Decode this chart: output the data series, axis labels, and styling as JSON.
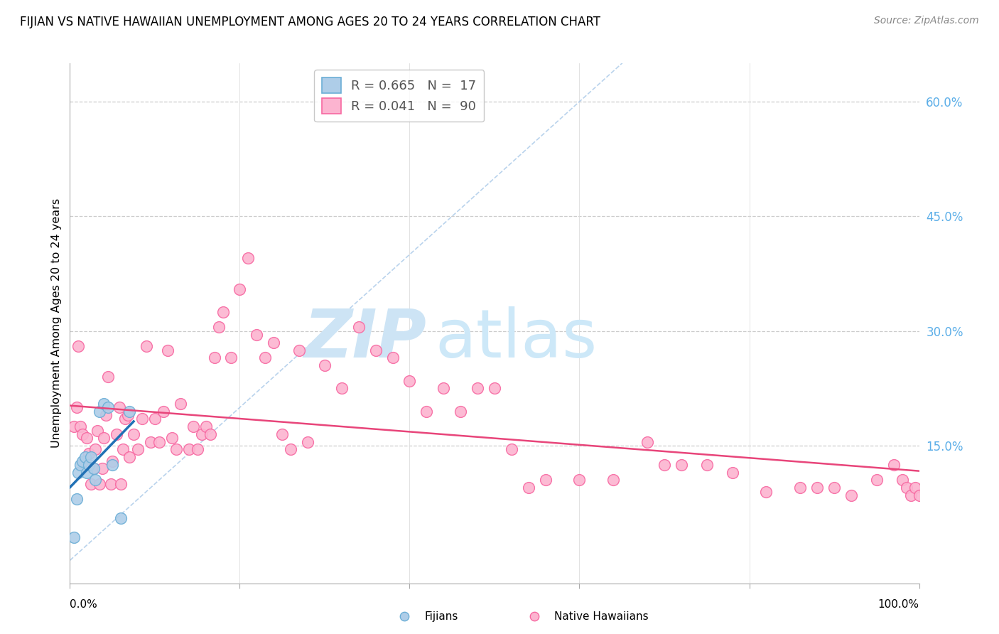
{
  "title": "FIJIAN VS NATIVE HAWAIIAN UNEMPLOYMENT AMONG AGES 20 TO 24 YEARS CORRELATION CHART",
  "source": "Source: ZipAtlas.com",
  "ylabel": "Unemployment Among Ages 20 to 24 years",
  "xlim": [
    0.0,
    1.0
  ],
  "ylim": [
    -0.03,
    0.65
  ],
  "legend_entry1": "R = 0.665   N =  17",
  "legend_entry2": "R = 0.041   N =  90",
  "fijian_color_edge": "#6baed6",
  "fijian_color_fill": "#aecde8",
  "hawaiian_color_edge": "#f768a1",
  "hawaiian_color_fill": "#fcb4d0",
  "regression_fijian_color": "#2171b5",
  "regression_hawaiian_color": "#e8457a",
  "diagonal_color": "#a8c8e8",
  "watermark_color": "#cde4f5",
  "watermark_zip": "ZIP",
  "watermark_atlas": "atlas",
  "background_color": "#ffffff",
  "grid_color": "#cccccc",
  "right_tick_color": "#5baee8",
  "fijian_x": [
    0.005,
    0.008,
    0.01,
    0.012,
    0.015,
    0.018,
    0.02,
    0.022,
    0.025,
    0.028,
    0.03,
    0.035,
    0.04,
    0.045,
    0.05,
    0.06,
    0.07
  ],
  "fijian_y": [
    0.03,
    0.08,
    0.115,
    0.125,
    0.13,
    0.135,
    0.115,
    0.125,
    0.135,
    0.12,
    0.105,
    0.195,
    0.205,
    0.2,
    0.125,
    0.055,
    0.195
  ],
  "hawaiian_x": [
    0.005,
    0.008,
    0.01,
    0.012,
    0.015,
    0.018,
    0.02,
    0.022,
    0.025,
    0.028,
    0.03,
    0.032,
    0.035,
    0.038,
    0.04,
    0.042,
    0.045,
    0.048,
    0.05,
    0.055,
    0.058,
    0.06,
    0.062,
    0.065,
    0.068,
    0.07,
    0.075,
    0.08,
    0.085,
    0.09,
    0.095,
    0.1,
    0.105,
    0.11,
    0.115,
    0.12,
    0.125,
    0.13,
    0.14,
    0.145,
    0.15,
    0.155,
    0.16,
    0.165,
    0.17,
    0.175,
    0.18,
    0.19,
    0.2,
    0.21,
    0.22,
    0.23,
    0.24,
    0.25,
    0.26,
    0.27,
    0.28,
    0.3,
    0.32,
    0.34,
    0.36,
    0.38,
    0.4,
    0.42,
    0.44,
    0.46,
    0.48,
    0.5,
    0.52,
    0.54,
    0.56,
    0.6,
    0.64,
    0.68,
    0.7,
    0.72,
    0.75,
    0.78,
    0.82,
    0.86,
    0.88,
    0.9,
    0.92,
    0.95,
    0.97,
    0.98,
    0.985,
    0.99,
    0.995,
    1.0
  ],
  "hawaiian_y": [
    0.175,
    0.2,
    0.28,
    0.175,
    0.165,
    0.13,
    0.16,
    0.14,
    0.1,
    0.12,
    0.145,
    0.17,
    0.1,
    0.12,
    0.16,
    0.19,
    0.24,
    0.1,
    0.13,
    0.165,
    0.2,
    0.1,
    0.145,
    0.185,
    0.19,
    0.135,
    0.165,
    0.145,
    0.185,
    0.28,
    0.155,
    0.185,
    0.155,
    0.195,
    0.275,
    0.16,
    0.145,
    0.205,
    0.145,
    0.175,
    0.145,
    0.165,
    0.175,
    0.165,
    0.265,
    0.305,
    0.325,
    0.265,
    0.355,
    0.395,
    0.295,
    0.265,
    0.285,
    0.165,
    0.145,
    0.275,
    0.155,
    0.255,
    0.225,
    0.305,
    0.275,
    0.265,
    0.235,
    0.195,
    0.225,
    0.195,
    0.225,
    0.225,
    0.145,
    0.095,
    0.105,
    0.105,
    0.105,
    0.155,
    0.125,
    0.125,
    0.125,
    0.115,
    0.09,
    0.095,
    0.095,
    0.095,
    0.085,
    0.105,
    0.125,
    0.105,
    0.095,
    0.085,
    0.095,
    0.085
  ]
}
